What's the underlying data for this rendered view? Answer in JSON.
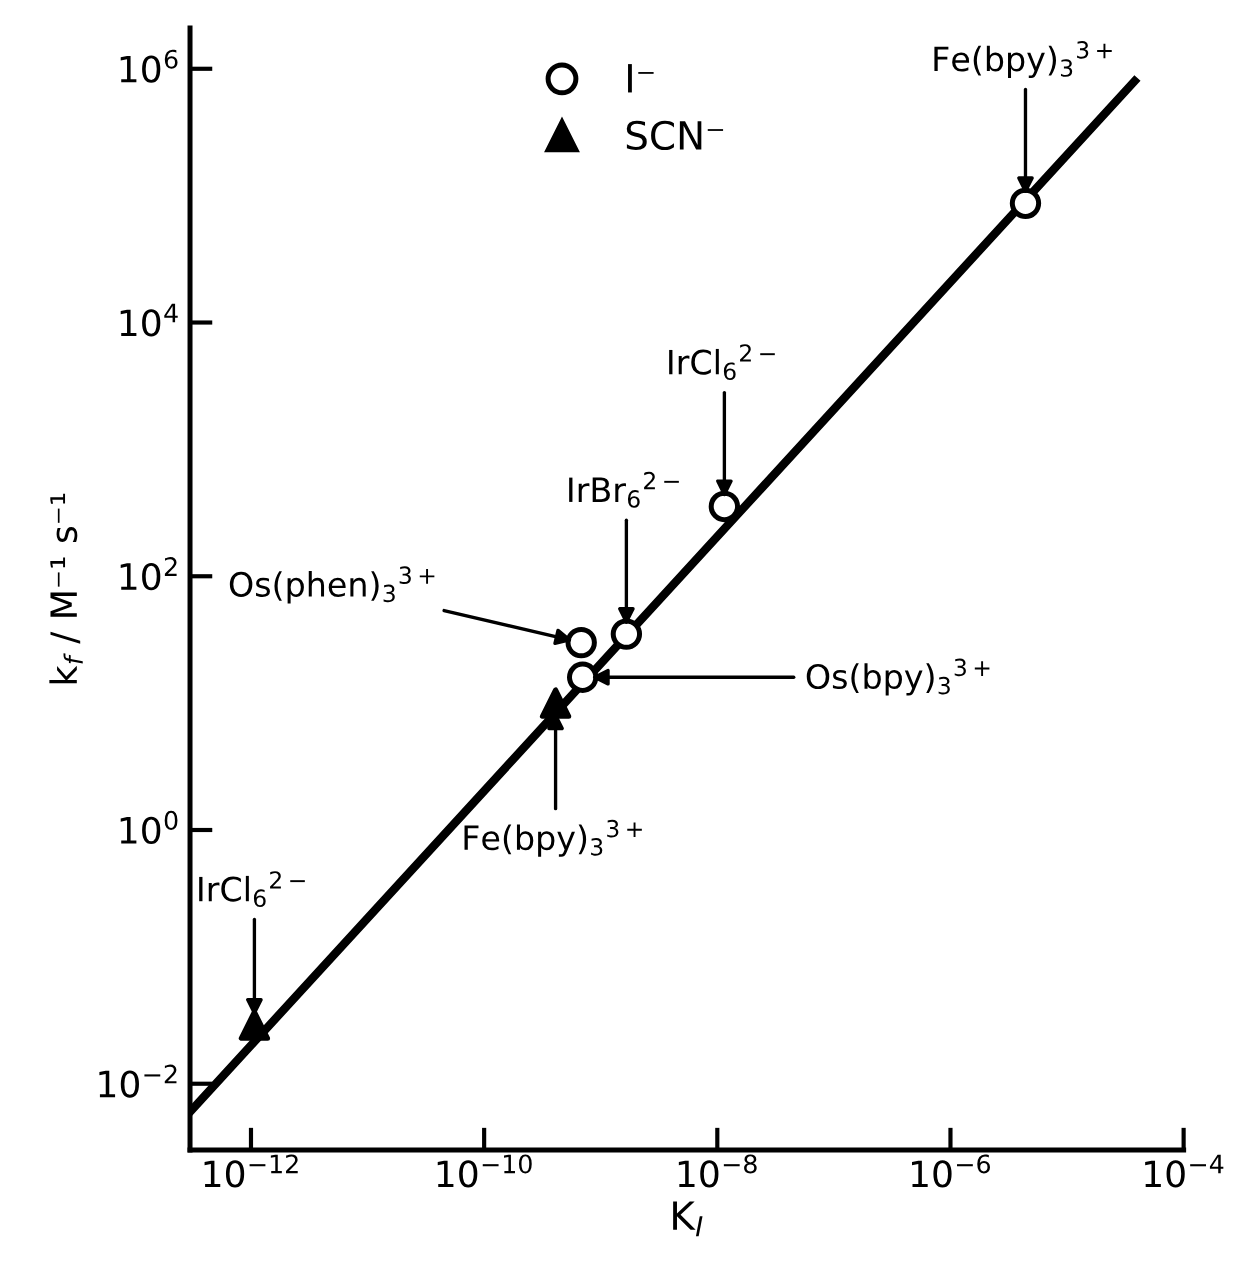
{
  "chart_data": {
    "type": "scatter",
    "xlabel": "K$_{I}$",
    "ylabel": "k$_{f}$ / M⁻¹ s⁻¹",
    "log": "xy",
    "xlim": [
      3e-13,
      0.0001
    ],
    "ylim": [
      0.003,
      2100000.0
    ],
    "xticks": [
      {
        "value": 1e-12,
        "label": "10$^{−12}$"
      },
      {
        "value": 1e-10,
        "label": "10$^{−10}$"
      },
      {
        "value": 1e-08,
        "label": "10$^{−8}$"
      },
      {
        "value": 1e-06,
        "label": "10$^{−6}$"
      },
      {
        "value": 0.0001,
        "label": "10$^{−4}$"
      }
    ],
    "yticks": [
      {
        "value": 0.01,
        "label": "10$^{−2}$"
      },
      {
        "value": 1,
        "label": "10$^{0}$"
      },
      {
        "value": 100,
        "label": "10$^{2}$"
      },
      {
        "value": 10000,
        "label": "10$^{4}$"
      },
      {
        "value": 1000000,
        "label": "10$^{6}$"
      }
    ],
    "grid": false,
    "legend": "top",
    "series": [
      {
        "name": "I⁻",
        "color": "#000000",
        "marker": "circle",
        "x": [
          4.4e-06,
          1.15e-08,
          1.66e-09,
          6.8e-10,
          7e-10
        ],
        "values": [
          87000,
          355,
          35,
          30,
          16
        ]
      },
      {
        "name": "SCN⁻",
        "color": "#000000",
        "marker": "triangle",
        "x": [
          4.1e-10,
          1.07e-12
        ],
        "values": [
          10,
          0.029
        ]
      },
      {
        "type": "line",
        "color": "#000000",
        "line_style": "solid",
        "marker": "none",
        "x": [
          3e-13,
          3.8e-05
        ],
        "values": [
          0.006,
          800000
        ]
      }
    ],
    "annotations": [
      {
        "text": "Fe(bpy)$_{3}$$^{3+}$",
        "x": 4.4e-06,
        "y": 87000
      },
      {
        "text": "IrCl$_{6}$$^{2−}$",
        "x": 1.15e-08,
        "y": 355
      },
      {
        "text": "IrBr$_{6}$$^{2−}$",
        "x": 1.66e-09,
        "y": 35
      },
      {
        "text": "Os(phen)$_{3}$$^{3+}$",
        "x": 6.8e-10,
        "y": 30
      },
      {
        "text": "Os(bpy)$_{3}$$^{3+}$",
        "x": 7e-10,
        "y": 16
      },
      {
        "text": "Fe(bpy)$_{3}$$^{3+}$",
        "x": 4.1e-10,
        "y": 10
      },
      {
        "text": "IrCl$_{6}$$^{2−}$",
        "x": 1.07e-12,
        "y": 0.029
      }
    ]
  }
}
